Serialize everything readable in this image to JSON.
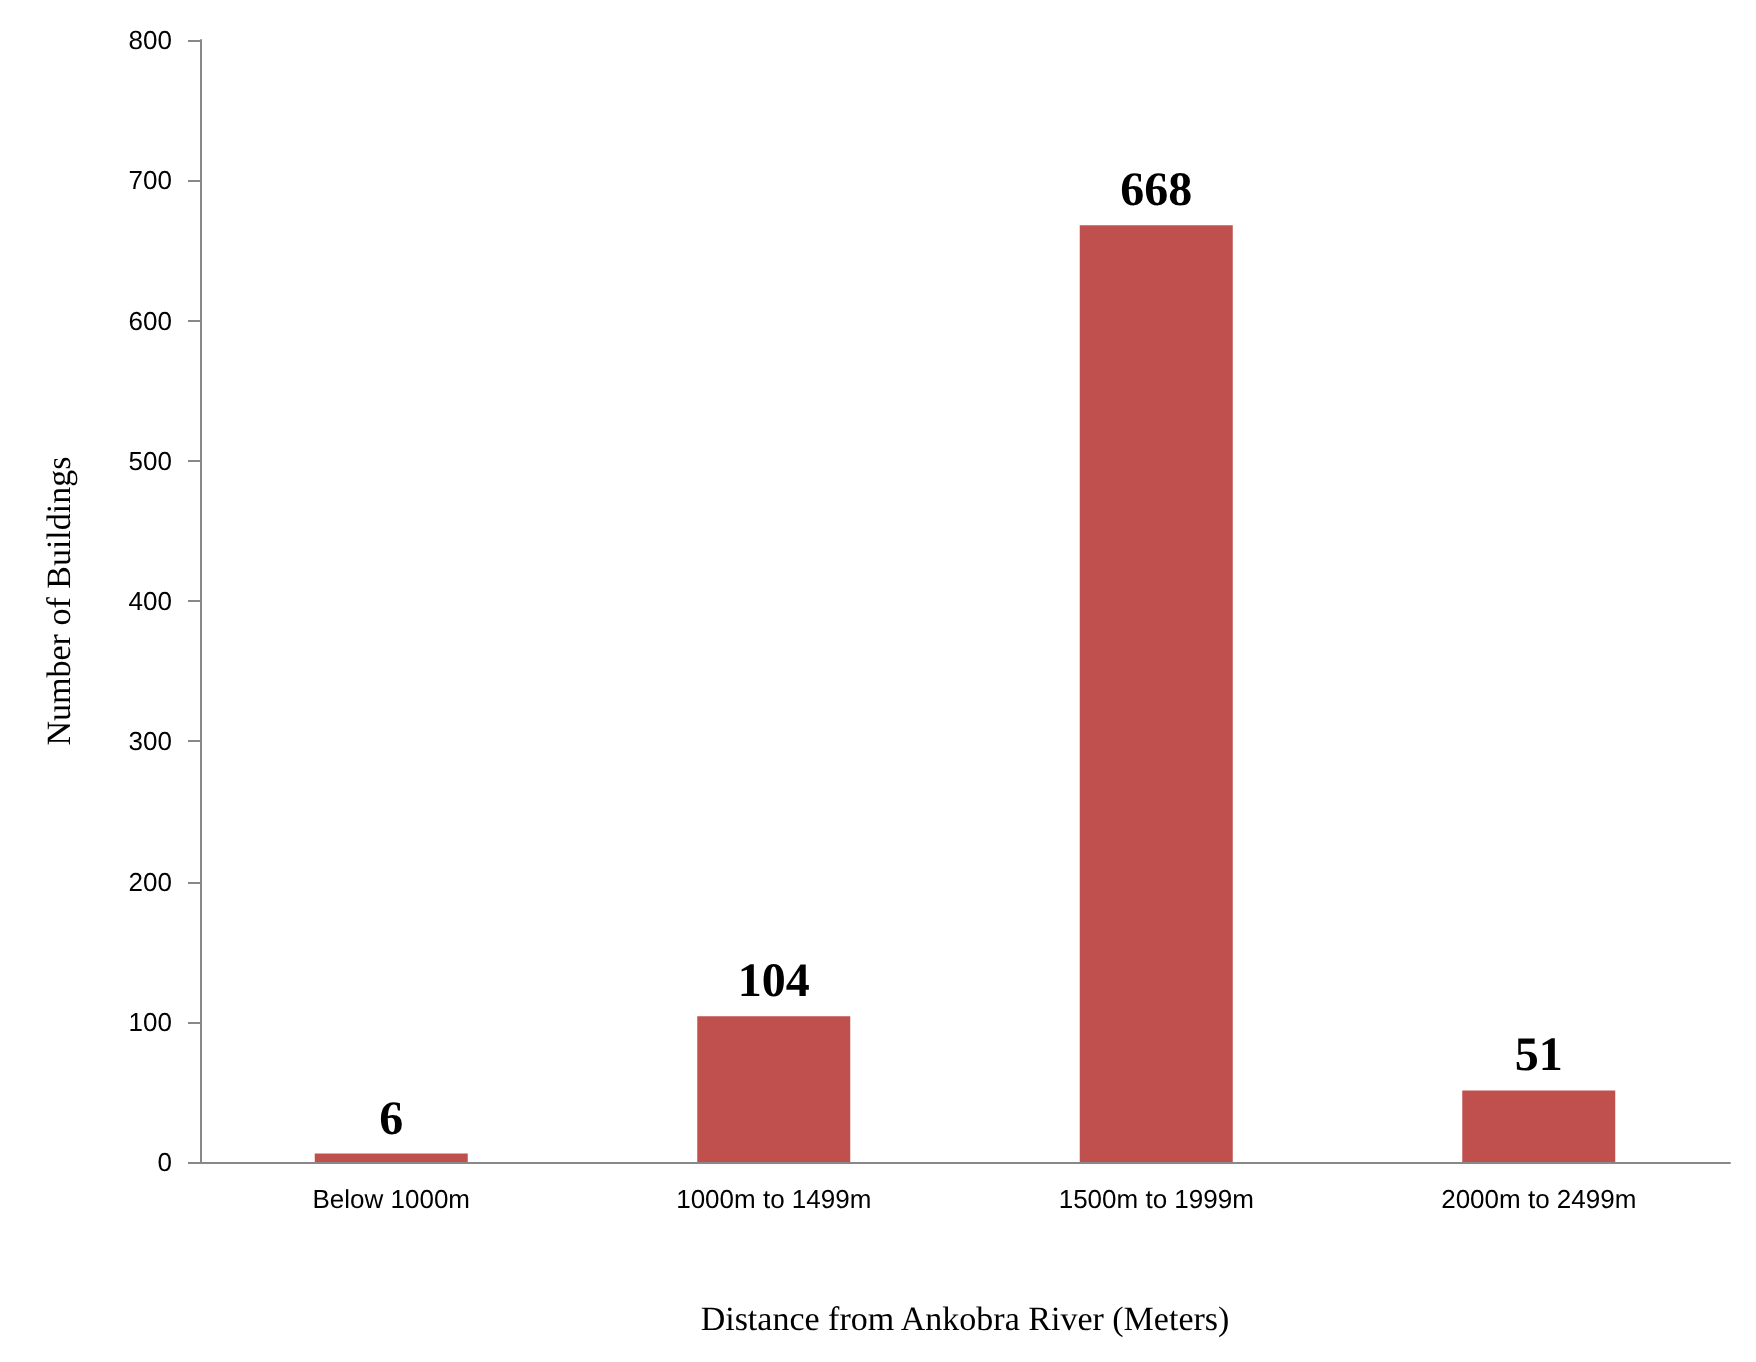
{
  "chart_data": {
    "type": "bar",
    "xlabel": "Distance from Ankobra River (Meters)",
    "ylabel": "Number of Buildings",
    "categories": [
      "Below 1000m",
      "1000m to 1499m",
      "1500m to 1999m",
      "2000m to 2499m"
    ],
    "values": [
      6,
      104,
      668,
      51
    ],
    "color": "#c0504d",
    "ylim": [
      0,
      800
    ],
    "yticks": [
      0,
      100,
      200,
      300,
      400,
      500,
      600,
      700,
      800
    ],
    "grid": false,
    "data_labels": true
  }
}
